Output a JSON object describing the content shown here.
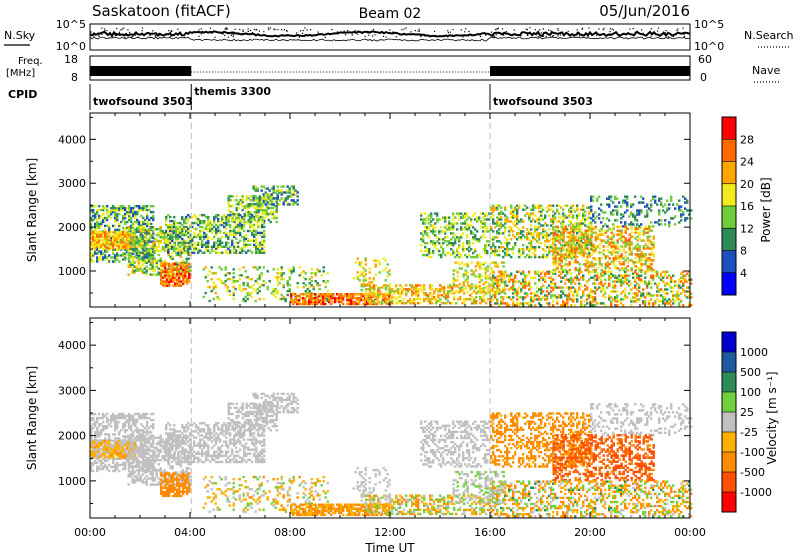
{
  "header": {
    "station": "Saskatoon (fitACF)",
    "beam": "Beam 02",
    "date": "05/Jun/2016"
  },
  "noise_panel": {
    "left_label": "N.Sky",
    "right_label": "N.Search",
    "left_ticks": [
      "10^5",
      "10^0"
    ],
    "right_ticks": [
      "10^5",
      "10^0"
    ]
  },
  "freq_panel": {
    "left_label_1": "Freq.",
    "left_label_2": "[MHz]",
    "right_label": "Nave",
    "left_ticks": [
      "18",
      "8"
    ],
    "right_ticks": [
      "60",
      "0"
    ]
  },
  "cpid_panel": {
    "label": "CPID",
    "segments": [
      {
        "name": "twofsound 3503",
        "start_hr": 0,
        "end_hr": 4.05
      },
      {
        "name": "themis 3300",
        "start_hr": 4.05,
        "end_hr": 16
      },
      {
        "name": "twofsound 3503",
        "start_hr": 16,
        "end_hr": 24
      }
    ]
  },
  "chart_data": [
    {
      "type": "heatmap",
      "title": "",
      "ylabel": "Slant Range [km]",
      "xlabel": "",
      "xlim": [
        0,
        24
      ],
      "ylim": [
        180,
        4600
      ],
      "x_ticks": [
        "00:00",
        "04:00",
        "08:00",
        "12:00",
        "16:00",
        "20:00",
        "00:00"
      ],
      "y_ticks": [
        1000,
        2000,
        3000,
        4000
      ],
      "mode_change_markers_hr": [
        4.05,
        16
      ],
      "colorbar": {
        "label": "Power [dB]",
        "levels": [
          4,
          8,
          12,
          16,
          20,
          24,
          28
        ],
        "colors": [
          "#0000ff",
          "#1e4fbe",
          "#2e8b57",
          "#6fcd3c",
          "#f2ea1e",
          "#ffa500",
          "#ff6a00",
          "#ff0000"
        ]
      }
    },
    {
      "type": "heatmap",
      "title": "",
      "ylabel": "Slant Range [km]",
      "xlabel": "Time UT",
      "xlim": [
        0,
        24
      ],
      "ylim": [
        180,
        4600
      ],
      "x_ticks": [
        "00:00",
        "04:00",
        "08:00",
        "12:00",
        "16:00",
        "20:00",
        "00:00"
      ],
      "y_ticks": [
        1000,
        2000,
        3000,
        4000
      ],
      "mode_change_markers_hr": [
        4.05,
        16
      ],
      "colorbar": {
        "label": "Velocity [m s⁻¹]",
        "levels": [
          1000,
          500,
          100,
          25,
          -25,
          -100,
          -500,
          -1000
        ],
        "colors": [
          "#0000cd",
          "#1e5aa0",
          "#2e8b57",
          "#6fd23c",
          "#c0c0c0",
          "#ffb000",
          "#ff8c00",
          "#ff5000",
          "#ff0000"
        ]
      }
    }
  ],
  "echo_regions": [
    {
      "t0": 0,
      "t1": 2.5,
      "r0": 1200,
      "r1": 2500,
      "p": 0.55,
      "pw": [
        4,
        20
      ],
      "v": [
        -25,
        25
      ]
    },
    {
      "t0": 0,
      "t1": 1.8,
      "r0": 1500,
      "r1": 1900,
      "p": 0.75,
      "pw": [
        16,
        26
      ],
      "v": [
        -120,
        25
      ]
    },
    {
      "t0": 1.5,
      "t1": 4.0,
      "r0": 900,
      "r1": 2000,
      "p": 0.5,
      "pw": [
        8,
        22
      ],
      "v": [
        -25,
        25
      ]
    },
    {
      "t0": 2.8,
      "t1": 4.0,
      "r0": 650,
      "r1": 1150,
      "p": 0.7,
      "pw": [
        20,
        30
      ],
      "v": [
        -500,
        -100
      ]
    },
    {
      "t0": 3.0,
      "t1": 7.0,
      "r0": 1400,
      "r1": 2300,
      "p": 0.5,
      "pw": [
        6,
        20
      ],
      "v": [
        -25,
        25
      ]
    },
    {
      "t0": 5.5,
      "t1": 7.5,
      "r0": 2100,
      "r1": 2700,
      "p": 0.5,
      "pw": [
        8,
        20
      ],
      "v": [
        -25,
        25
      ]
    },
    {
      "t0": 6.5,
      "t1": 8.3,
      "r0": 2500,
      "r1": 2950,
      "p": 0.5,
      "pw": [
        4,
        18
      ],
      "v": [
        -25,
        25
      ]
    },
    {
      "t0": 4.5,
      "t1": 9.5,
      "r0": 300,
      "r1": 1100,
      "p": 0.22,
      "pw": [
        8,
        22
      ],
      "v": [
        -120,
        60
      ]
    },
    {
      "t0": 8.0,
      "t1": 12.0,
      "r0": 230,
      "r1": 500,
      "p": 0.7,
      "pw": [
        20,
        30
      ],
      "v": [
        -200,
        -25
      ]
    },
    {
      "t0": 11.0,
      "t1": 16.0,
      "r0": 250,
      "r1": 700,
      "p": 0.45,
      "pw": [
        14,
        26
      ],
      "v": [
        -150,
        100
      ]
    },
    {
      "t0": 10.5,
      "t1": 12.0,
      "r0": 500,
      "r1": 1300,
      "p": 0.2,
      "pw": [
        12,
        24
      ],
      "v": [
        -25,
        25
      ]
    },
    {
      "t0": 13.2,
      "t1": 16.0,
      "r0": 1300,
      "r1": 2300,
      "p": 0.35,
      "pw": [
        8,
        20
      ],
      "v": [
        -25,
        25
      ]
    },
    {
      "t0": 16.0,
      "t1": 20.0,
      "r0": 1300,
      "r1": 2500,
      "p": 0.4,
      "pw": [
        8,
        24
      ],
      "v": [
        -500,
        -25
      ]
    },
    {
      "t0": 18.5,
      "t1": 22.5,
      "r0": 1000,
      "r1": 2000,
      "p": 0.45,
      "pw": [
        12,
        28
      ],
      "v": [
        -1000,
        -300
      ]
    },
    {
      "t0": 16.0,
      "t1": 24.0,
      "r0": 200,
      "r1": 1000,
      "p": 0.4,
      "pw": [
        8,
        28
      ],
      "v": [
        -200,
        120
      ]
    },
    {
      "t0": 20.0,
      "t1": 24.0,
      "r0": 2000,
      "r1": 2700,
      "p": 0.25,
      "pw": [
        4,
        16
      ],
      "v": [
        -25,
        25
      ]
    },
    {
      "t0": 14.5,
      "t1": 16.5,
      "r0": 500,
      "r1": 1200,
      "p": 0.3,
      "pw": [
        12,
        24
      ],
      "v": [
        -25,
        60
      ]
    }
  ]
}
